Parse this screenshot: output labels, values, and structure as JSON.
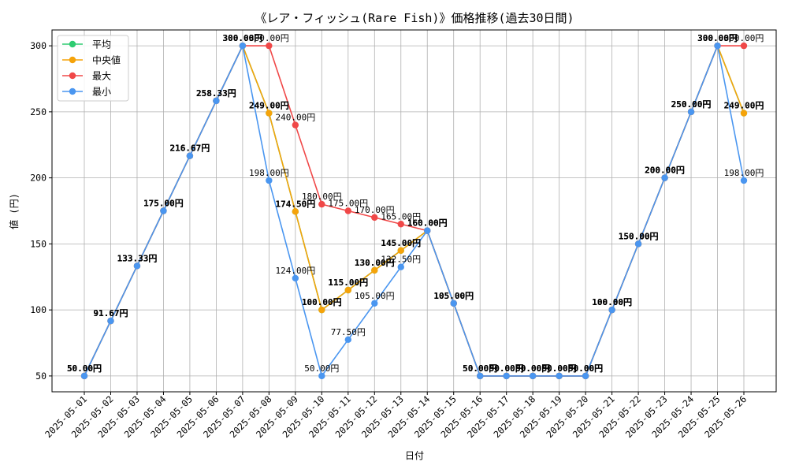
{
  "chart_data": {
    "type": "line",
    "title": "《レア・フィッシュ(Rare Fish)》価格推移(過去30日間)",
    "xlabel": "日付",
    "ylabel": "値 (円)",
    "ylim": [
      38,
      312
    ],
    "yticks": [
      50,
      100,
      150,
      200,
      250,
      300
    ],
    "grid": true,
    "legend_position": "top-left",
    "value_suffix": "円",
    "categories": [
      "2025-05-01",
      "2025-05-02",
      "2025-05-03",
      "2025-05-04",
      "2025-05-05",
      "2025-05-06",
      "2025-05-07",
      "2025-05-08",
      "2025-05-09",
      "2025-05-10",
      "2025-05-11",
      "2025-05-12",
      "2025-05-13",
      "2025-05-14",
      "2025-05-15",
      "2025-05-16",
      "2025-05-17",
      "2025-05-18",
      "2025-05-19",
      "2025-05-20",
      "2025-05-21",
      "2025-05-22",
      "2025-05-23",
      "2025-05-24",
      "2025-05-25",
      "2025-05-26"
    ],
    "series": [
      {
        "name": "平均",
        "color": "#2ecc71",
        "label_weight": "bold",
        "values": [
          50,
          91.67,
          133.33,
          175,
          216.67,
          258.33,
          300,
          249,
          174.5,
          100,
          115,
          130,
          145,
          160,
          105,
          50,
          50,
          50,
          50,
          50,
          100,
          150,
          200,
          250,
          300,
          249
        ]
      },
      {
        "name": "中央値",
        "color": "#f5a30a",
        "label_weight": "bold",
        "values": [
          50,
          91.67,
          133.33,
          175,
          216.67,
          258.33,
          300,
          249,
          174.5,
          100,
          115,
          130,
          145,
          160,
          105,
          50,
          50,
          50,
          50,
          50,
          100,
          150,
          200,
          250,
          300,
          249
        ]
      },
      {
        "name": "最大",
        "color": "#f04848",
        "label_weight": "normal",
        "values": [
          50,
          91.67,
          133.33,
          175,
          216.67,
          258.33,
          300,
          300,
          240,
          180,
          175,
          170,
          165,
          160,
          105,
          50,
          50,
          50,
          50,
          50,
          100,
          150,
          200,
          250,
          300,
          300
        ]
      },
      {
        "name": "最小",
        "color": "#4a96f0",
        "label_weight": "normal",
        "values": [
          50,
          91.67,
          133.33,
          175,
          216.67,
          258.33,
          300,
          198,
          124,
          50,
          77.5,
          105,
          132.5,
          160,
          105,
          50,
          50,
          50,
          50,
          50,
          100,
          150,
          200,
          250,
          300,
          198
        ]
      }
    ]
  }
}
